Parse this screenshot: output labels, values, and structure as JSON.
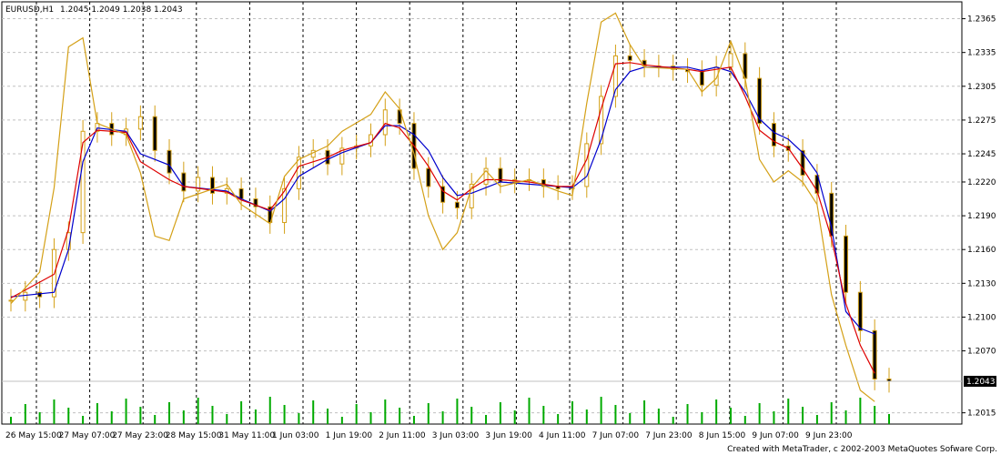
{
  "chart_data": {
    "type": "candlestick",
    "symbol": "EURUSD,H1",
    "ohlc_text": "1.2045 1.2049 1.2038 1.2043",
    "credit": "Created with MetaTrader, c 2002-2003 MetaQuotes Sofware Corp.",
    "current_price": 1.2043,
    "current_price_label": "1.2043",
    "ylim": [
      1.2005,
      1.238
    ],
    "y_ticks": [
      "1.2365",
      "1.2335",
      "1.2305",
      "1.2275",
      "1.2245",
      "1.2220",
      "1.2190",
      "1.2160",
      "1.2130",
      "1.2100",
      "1.2070",
      "1.2015"
    ],
    "x_ticks": [
      "26 May 15:00",
      "27 May 07:00",
      "27 May 23:00",
      "28 May 15:00",
      "31 May 11:00",
      "1 Jun 03:00",
      "1 Jun 19:00",
      "2 Jun 11:00",
      "3 Jun 03:00",
      "3 Jun 19:00",
      "4 Jun 11:00",
      "7 Jun 07:00",
      "7 Jun 23:00",
      "8 Jun 15:00",
      "9 Jun 07:00",
      "9 Jun 23:00"
    ],
    "grid": true,
    "series": [
      {
        "name": "close",
        "points": [
          [
            0,
            1.2115
          ],
          [
            1,
            1.2122
          ],
          [
            2,
            1.2118
          ],
          [
            3,
            1.216
          ],
          [
            4,
            1.2175
          ],
          [
            5,
            1.2265
          ],
          [
            6,
            1.2272
          ],
          [
            7,
            1.2262
          ],
          [
            8,
            1.2267
          ],
          [
            9,
            1.2278
          ],
          [
            10,
            1.2248
          ],
          [
            11,
            1.2228
          ],
          [
            12,
            1.2212
          ],
          [
            13,
            1.2224
          ],
          [
            14,
            1.221
          ],
          [
            15,
            1.2214
          ],
          [
            16,
            1.2205
          ],
          [
            17,
            1.2198
          ],
          [
            18,
            1.2184
          ],
          [
            19,
            1.2214
          ],
          [
            20,
            1.2242
          ],
          [
            21,
            1.2248
          ],
          [
            22,
            1.2236
          ],
          [
            23,
            1.225
          ],
          [
            24,
            1.2252
          ],
          [
            25,
            1.2262
          ],
          [
            26,
            1.2284
          ],
          [
            27,
            1.2272
          ],
          [
            28,
            1.2232
          ],
          [
            29,
            1.2216
          ],
          [
            30,
            1.2202
          ],
          [
            31,
            1.2197
          ],
          [
            32,
            1.2218
          ],
          [
            33,
            1.2232
          ],
          [
            34,
            1.222
          ],
          [
            35,
            1.2222
          ],
          [
            36,
            1.2222
          ],
          [
            37,
            1.2216
          ],
          [
            38,
            1.2214
          ],
          [
            39,
            1.2216
          ],
          [
            40,
            1.2254
          ],
          [
            41,
            1.2296
          ],
          [
            42,
            1.2332
          ],
          [
            43,
            1.2328
          ],
          [
            44,
            1.2323
          ],
          [
            45,
            1.2323
          ],
          [
            46,
            1.232
          ],
          [
            47,
            1.2318
          ],
          [
            48,
            1.2306
          ],
          [
            49,
            1.2322
          ],
          [
            50,
            1.2334
          ],
          [
            51,
            1.2312
          ],
          [
            52,
            1.2272
          ],
          [
            53,
            1.2252
          ],
          [
            54,
            1.2248
          ],
          [
            55,
            1.2226
          ],
          [
            56,
            1.221
          ],
          [
            57,
            1.2172
          ],
          [
            58,
            1.2122
          ],
          [
            59,
            1.2088
          ],
          [
            60,
            1.2045
          ],
          [
            61,
            1.2043
          ]
        ]
      },
      {
        "name": "ma-blue",
        "color": "#0000cc",
        "points": [
          [
            0,
            1.2118
          ],
          [
            3,
            1.2122
          ],
          [
            4,
            1.216
          ],
          [
            5,
            1.2238
          ],
          [
            6,
            1.2268
          ],
          [
            8,
            1.2265
          ],
          [
            9,
            1.2245
          ],
          [
            11,
            1.2235
          ],
          [
            12,
            1.2216
          ],
          [
            15,
            1.2212
          ],
          [
            16,
            1.2205
          ],
          [
            18,
            1.2194
          ],
          [
            19,
            1.2205
          ],
          [
            20,
            1.2225
          ],
          [
            22,
            1.224
          ],
          [
            23,
            1.2246
          ],
          [
            25,
            1.2255
          ],
          [
            26,
            1.227
          ],
          [
            27,
            1.227
          ],
          [
            28,
            1.2262
          ],
          [
            29,
            1.2248
          ],
          [
            30,
            1.2224
          ],
          [
            31,
            1.2208
          ],
          [
            32,
            1.221
          ],
          [
            33,
            1.2215
          ],
          [
            34,
            1.222
          ],
          [
            36,
            1.2218
          ],
          [
            38,
            1.2216
          ],
          [
            39,
            1.2215
          ],
          [
            40,
            1.2225
          ],
          [
            41,
            1.2258
          ],
          [
            42,
            1.2302
          ],
          [
            43,
            1.2318
          ],
          [
            44,
            1.2322
          ],
          [
            47,
            1.2322
          ],
          [
            48,
            1.2319
          ],
          [
            49,
            1.2322
          ],
          [
            50,
            1.2318
          ],
          [
            51,
            1.23
          ],
          [
            52,
            1.2276
          ],
          [
            53,
            1.2264
          ],
          [
            54,
            1.2258
          ],
          [
            55,
            1.2246
          ],
          [
            56,
            1.2228
          ],
          [
            57,
            1.218
          ],
          [
            58,
            1.2105
          ],
          [
            59,
            1.209
          ],
          [
            60,
            1.2085
          ]
        ]
      },
      {
        "name": "ma-red",
        "color": "#dd0000",
        "points": [
          [
            0,
            1.2117
          ],
          [
            3,
            1.2138
          ],
          [
            4,
            1.2178
          ],
          [
            5,
            1.2255
          ],
          [
            6,
            1.2266
          ],
          [
            8,
            1.2264
          ],
          [
            9,
            1.2238
          ],
          [
            11,
            1.2222
          ],
          [
            12,
            1.2216
          ],
          [
            15,
            1.2211
          ],
          [
            16,
            1.2204
          ],
          [
            18,
            1.2195
          ],
          [
            19,
            1.2212
          ],
          [
            20,
            1.2234
          ],
          [
            22,
            1.2242
          ],
          [
            23,
            1.2248
          ],
          [
            25,
            1.2255
          ],
          [
            26,
            1.2272
          ],
          [
            27,
            1.2268
          ],
          [
            28,
            1.2252
          ],
          [
            29,
            1.2234
          ],
          [
            30,
            1.2212
          ],
          [
            31,
            1.2204
          ],
          [
            32,
            1.2214
          ],
          [
            33,
            1.2222
          ],
          [
            34,
            1.2222
          ],
          [
            36,
            1.222
          ],
          [
            38,
            1.2216
          ],
          [
            39,
            1.2216
          ],
          [
            40,
            1.224
          ],
          [
            41,
            1.2285
          ],
          [
            42,
            1.2325
          ],
          [
            43,
            1.2326
          ],
          [
            44,
            1.2324
          ],
          [
            47,
            1.232
          ],
          [
            48,
            1.2318
          ],
          [
            49,
            1.232
          ],
          [
            50,
            1.2322
          ],
          [
            51,
            1.2296
          ],
          [
            52,
            1.2266
          ],
          [
            53,
            1.2256
          ],
          [
            54,
            1.225
          ],
          [
            55,
            1.2232
          ],
          [
            56,
            1.2212
          ],
          [
            57,
            1.217
          ],
          [
            58,
            1.2112
          ],
          [
            59,
            1.2075
          ],
          [
            60,
            1.205
          ]
        ]
      },
      {
        "name": "ma-gold",
        "color": "#d4a017",
        "points": [
          [
            0,
            1.2112
          ],
          [
            2,
            1.214
          ],
          [
            3,
            1.2215
          ],
          [
            4,
            1.234
          ],
          [
            5,
            1.2348
          ],
          [
            6,
            1.2272
          ],
          [
            8,
            1.2262
          ],
          [
            9,
            1.2228
          ],
          [
            10,
            1.2172
          ],
          [
            11,
            1.2168
          ],
          [
            12,
            1.2205
          ],
          [
            15,
            1.2218
          ],
          [
            16,
            1.22
          ],
          [
            18,
            1.2183
          ],
          [
            19,
            1.2225
          ],
          [
            20,
            1.224
          ],
          [
            22,
            1.2252
          ],
          [
            23,
            1.2265
          ],
          [
            25,
            1.228
          ],
          [
            26,
            1.23
          ],
          [
            27,
            1.2285
          ],
          [
            28,
            1.2245
          ],
          [
            29,
            1.219
          ],
          [
            30,
            1.216
          ],
          [
            31,
            1.2175
          ],
          [
            32,
            1.2215
          ],
          [
            33,
            1.223
          ],
          [
            34,
            1.2216
          ],
          [
            36,
            1.2222
          ],
          [
            38,
            1.2212
          ],
          [
            39,
            1.2208
          ],
          [
            40,
            1.229
          ],
          [
            41,
            1.2362
          ],
          [
            42,
            1.237
          ],
          [
            43,
            1.2342
          ],
          [
            44,
            1.2322
          ],
          [
            47,
            1.232
          ],
          [
            48,
            1.23
          ],
          [
            49,
            1.2312
          ],
          [
            50,
            1.2345
          ],
          [
            51,
            1.2312
          ],
          [
            52,
            1.224
          ],
          [
            53,
            1.222
          ],
          [
            54,
            1.223
          ],
          [
            55,
            1.222
          ],
          [
            56,
            1.22
          ],
          [
            57,
            1.212
          ],
          [
            58,
            1.2075
          ],
          [
            59,
            1.2035
          ],
          [
            60,
            1.2025
          ]
        ]
      }
    ],
    "candle_color": "#d4a017",
    "volume_color": "#00aa00",
    "volume_points": 62
  }
}
